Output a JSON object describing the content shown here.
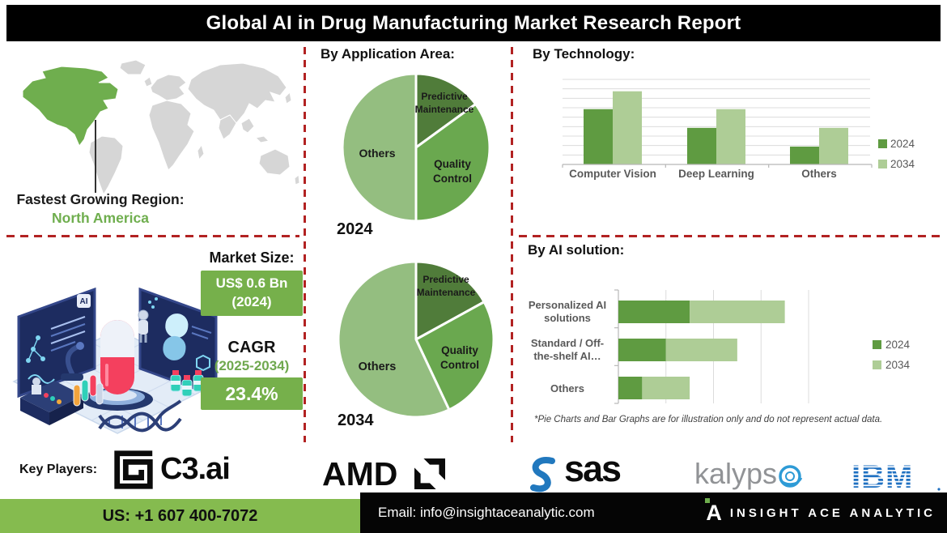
{
  "header": {
    "title": "Global AI in Drug Manufacturing Market Research Report"
  },
  "region": {
    "label": "Fastest Growing Region:",
    "value": "North America"
  },
  "market": {
    "size_label": "Market Size:",
    "size_value": "US$ 0.6 Bn",
    "size_year": "(2024)",
    "cagr_label": "CAGR",
    "cagr_period": "(2025-2034)",
    "cagr_value": "23.4%"
  },
  "sections": {
    "application": "By Application Area:",
    "technology": "By Technology:",
    "ai_solution": "By AI solution:"
  },
  "chart_data": [
    {
      "type": "pie",
      "title": "By Application Area:",
      "year": "2024",
      "slices": [
        {
          "label": "Predictive Maintenance",
          "value": 15,
          "color": "#507c3a"
        },
        {
          "label": "Quality Control",
          "value": 35,
          "color": "#6aa84f"
        },
        {
          "label": "Others",
          "value": 50,
          "color": "#94be80"
        }
      ],
      "note": "illustration only"
    },
    {
      "type": "pie",
      "title": "By Application Area:",
      "year": "2034",
      "slices": [
        {
          "label": "Predictive Maintenance",
          "value": 17,
          "color": "#507c3a"
        },
        {
          "label": "Quality Control",
          "value": 26,
          "color": "#6aa84f"
        },
        {
          "label": "Others",
          "value": 57,
          "color": "#94be80"
        }
      ],
      "note": "illustration only"
    },
    {
      "type": "bar",
      "title": "By Technology:",
      "categories": [
        "Computer Vision",
        "Deep Learning",
        "Others"
      ],
      "series": [
        {
          "name": "2024",
          "color": "#5f9b41",
          "values": [
            65,
            43,
            21
          ]
        },
        {
          "name": "2034",
          "color": "#aecd96",
          "values": [
            86,
            65,
            43
          ]
        }
      ],
      "ylim": [
        0,
        100
      ],
      "grid": true,
      "legend_position": "right",
      "note": "illustration only"
    },
    {
      "type": "stacked-bar-horizontal",
      "title": "By AI solution:",
      "categories": [
        "Personalized AI solutions",
        "Standard / Off-the-shelf AI…",
        "Others"
      ],
      "categories_display": [
        "Personalized AI\nsolutions",
        "Standard / Off-\nthe-shelf AI…",
        "Others"
      ],
      "series": [
        {
          "name": "2024",
          "color": "#5f9b41",
          "values": [
            15,
            10,
            5
          ]
        },
        {
          "name": "2034",
          "color": "#aecd96",
          "values": [
            20,
            15,
            10
          ]
        }
      ],
      "xlim": [
        0,
        40
      ],
      "grid": true,
      "legend_position": "right",
      "footnote": "*Pie Charts and Bar Graphs are for illustration only and do not represent actual data."
    }
  ],
  "key_players": {
    "label": "Key Players:",
    "players": [
      {
        "name": "C3.ai",
        "display": "C3.ai"
      },
      {
        "name": "AMD",
        "display": "AMD"
      },
      {
        "name": "SAS",
        "display": "sas"
      },
      {
        "name": "Kalypso",
        "display": "kalyps"
      },
      {
        "name": "IBM",
        "display": "IBM"
      }
    ]
  },
  "footer": {
    "phone": "US: +1 607 400-7072",
    "email": "Email: info@insightaceanalytic.com",
    "brand": "INSIGHT ACE ANALYTIC"
  },
  "colors": {
    "accent_green_dark": "#507c3a",
    "accent_green_mid": "#6aa84f",
    "accent_green_light": "#94be80",
    "box_green": "#76b04b",
    "footer_green": "#85bb4f",
    "divider_red": "#b22222",
    "map_highlight": "#6fae4e",
    "map_base": "#d6d6d6"
  }
}
